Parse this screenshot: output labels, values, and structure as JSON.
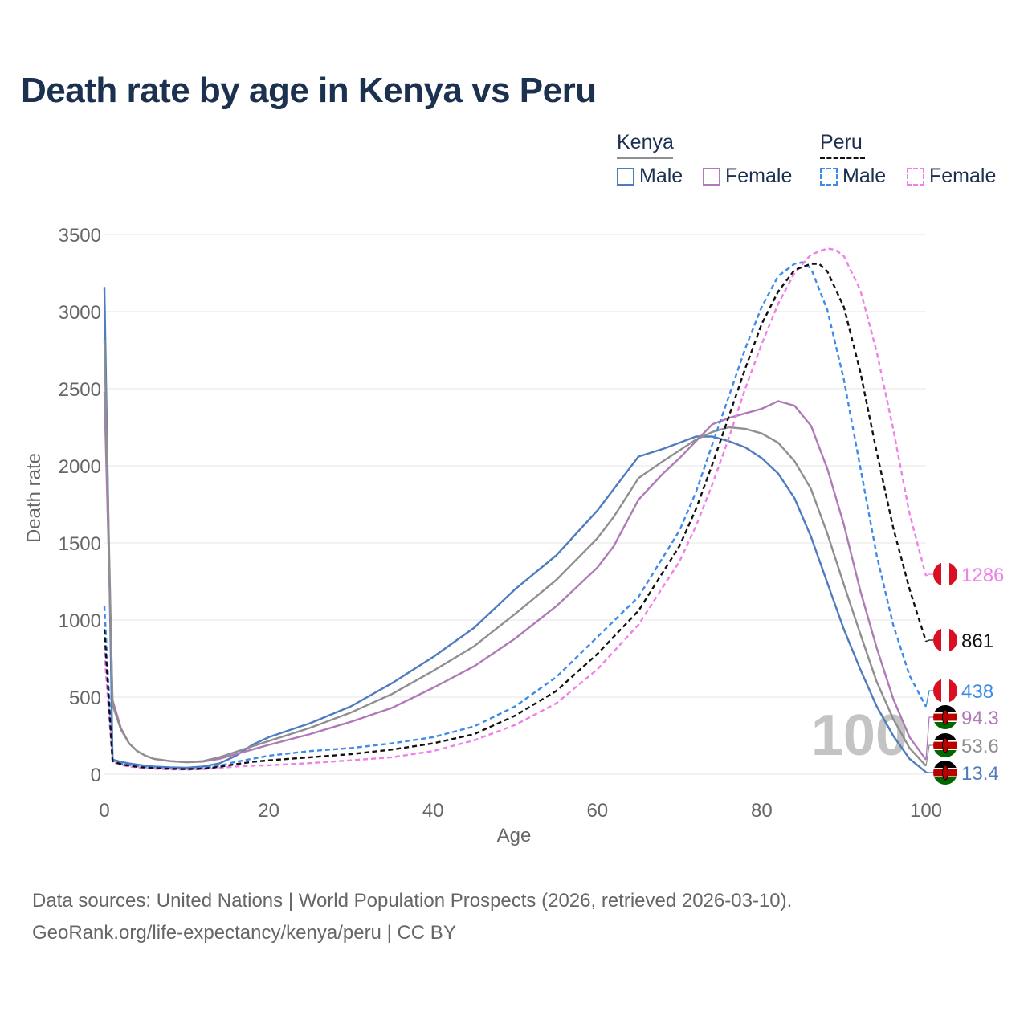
{
  "title": "Death rate by age in Kenya vs Peru",
  "legend": {
    "countries": [
      {
        "name": "Kenya",
        "line_style": "solid",
        "color": "#8f8f8f"
      },
      {
        "name": "Peru",
        "line_style": "dashed",
        "color": "#111111"
      }
    ],
    "items": [
      {
        "label": "Male",
        "country": "Kenya",
        "color": "#4f7bbf",
        "style": "solid"
      },
      {
        "label": "Female",
        "country": "Kenya",
        "color": "#b07ab8",
        "style": "solid"
      },
      {
        "label": "Male",
        "country": "Peru",
        "color": "#3d8be8",
        "style": "dashed"
      },
      {
        "label": "Female",
        "country": "Peru",
        "color": "#f07fe8",
        "style": "dashed"
      }
    ]
  },
  "chart_data": {
    "type": "line",
    "title": "Death rate by age in Kenya vs Peru",
    "xlabel": "Age",
    "ylabel": "Death rate",
    "xlim": [
      0,
      100
    ],
    "ylim": [
      0,
      3500
    ],
    "x_ticks": [
      0,
      20,
      40,
      60,
      80,
      100
    ],
    "y_ticks": [
      0,
      500,
      1000,
      1500,
      2000,
      2500,
      3000,
      3500
    ],
    "x_tick_labels": [
      "0",
      "20",
      "40",
      "60",
      "80",
      "100"
    ],
    "y_tick_labels": [
      "0",
      "500",
      "1000",
      "1500",
      "2000",
      "2500",
      "3000",
      "3500"
    ],
    "grid": true,
    "watermark": "100",
    "series": [
      {
        "name": "Kenya Male",
        "color": "#4f7bbf",
        "dash": false,
        "x": [
          0,
          1,
          2,
          3,
          4,
          5,
          6,
          8,
          10,
          12,
          14,
          16,
          18,
          20,
          25,
          30,
          35,
          40,
          45,
          50,
          55,
          60,
          62,
          65,
          68,
          70,
          72,
          74,
          76,
          78,
          80,
          82,
          84,
          86,
          88,
          90,
          92,
          94,
          96,
          98,
          100
        ],
        "y": [
          3160,
          95,
          80,
          70,
          62,
          55,
          50,
          45,
          42,
          50,
          70,
          120,
          190,
          240,
          330,
          440,
          590,
          760,
          950,
          1200,
          1420,
          1710,
          1850,
          2060,
          2110,
          2150,
          2190,
          2190,
          2160,
          2120,
          2050,
          1950,
          1790,
          1540,
          1240,
          940,
          680,
          440,
          250,
          100,
          13.4
        ],
        "end_label": "13.4"
      },
      {
        "name": "Kenya Female",
        "color": "#b07ab8",
        "dash": false,
        "x": [
          0,
          1,
          2,
          3,
          4,
          5,
          6,
          8,
          10,
          12,
          14,
          16,
          18,
          20,
          25,
          30,
          35,
          40,
          45,
          50,
          55,
          60,
          62,
          65,
          68,
          70,
          72,
          74,
          76,
          78,
          80,
          82,
          84,
          86,
          88,
          90,
          92,
          94,
          96,
          98,
          100
        ],
        "y": [
          2480,
          480,
          300,
          200,
          150,
          120,
          100,
          85,
          78,
          82,
          100,
          130,
          160,
          190,
          260,
          340,
          430,
          560,
          700,
          880,
          1090,
          1340,
          1480,
          1780,
          1950,
          2050,
          2160,
          2270,
          2310,
          2340,
          2370,
          2420,
          2390,
          2260,
          1980,
          1620,
          1190,
          820,
          490,
          240,
          94.3
        ],
        "end_label": "94.3"
      },
      {
        "name": "Kenya Total",
        "color": "#8f8f8f",
        "dash": false,
        "x": [
          0,
          1,
          2,
          3,
          4,
          5,
          6,
          8,
          10,
          12,
          14,
          16,
          18,
          20,
          25,
          30,
          35,
          40,
          45,
          50,
          55,
          60,
          62,
          65,
          68,
          70,
          72,
          74,
          76,
          78,
          80,
          82,
          84,
          86,
          88,
          90,
          92,
          94,
          96,
          98,
          100
        ],
        "y": [
          2820,
          450,
          290,
          200,
          150,
          120,
          100,
          85,
          78,
          85,
          110,
          145,
          180,
          215,
          300,
          400,
          520,
          670,
          830,
          1040,
          1260,
          1530,
          1670,
          1920,
          2030,
          2100,
          2170,
          2220,
          2250,
          2240,
          2210,
          2150,
          2030,
          1850,
          1560,
          1230,
          910,
          600,
          360,
          170,
          53.6
        ],
        "end_label": "53.6"
      },
      {
        "name": "Peru Male",
        "color": "#3d8be8",
        "dash": true,
        "x": [
          0,
          1,
          2,
          3,
          4,
          5,
          6,
          8,
          10,
          12,
          14,
          16,
          18,
          20,
          25,
          30,
          35,
          40,
          45,
          50,
          55,
          60,
          65,
          70,
          72,
          74,
          76,
          78,
          80,
          82,
          84,
          85,
          86,
          88,
          90,
          92,
          94,
          96,
          98,
          100
        ],
        "y": [
          1090,
          90,
          70,
          60,
          52,
          46,
          42,
          38,
          36,
          40,
          55,
          80,
          100,
          120,
          150,
          170,
          200,
          240,
          310,
          440,
          630,
          890,
          1150,
          1580,
          1830,
          2140,
          2450,
          2760,
          3030,
          3230,
          3310,
          3320,
          3280,
          3010,
          2560,
          1990,
          1420,
          970,
          640,
          438
        ],
        "end_label": "438"
      },
      {
        "name": "Peru Female",
        "color": "#f07fe8",
        "dash": true,
        "x": [
          0,
          1,
          2,
          3,
          4,
          5,
          6,
          8,
          10,
          12,
          14,
          16,
          18,
          20,
          25,
          30,
          35,
          40,
          45,
          50,
          55,
          60,
          65,
          70,
          72,
          74,
          76,
          78,
          80,
          82,
          84,
          86,
          88,
          89,
          90,
          92,
          94,
          96,
          98,
          100
        ],
        "y": [
          790,
          80,
          60,
          50,
          45,
          40,
          36,
          32,
          30,
          33,
          40,
          50,
          55,
          58,
          72,
          90,
          110,
          150,
          220,
          320,
          460,
          680,
          970,
          1380,
          1610,
          1880,
          2180,
          2500,
          2790,
          3050,
          3250,
          3370,
          3410,
          3400,
          3360,
          3140,
          2740,
          2240,
          1690,
          1286
        ],
        "end_label": "1286"
      },
      {
        "name": "Peru Total",
        "color": "#111111",
        "dash": true,
        "x": [
          0,
          1,
          2,
          3,
          4,
          5,
          6,
          8,
          10,
          12,
          14,
          16,
          18,
          20,
          25,
          30,
          35,
          40,
          45,
          50,
          55,
          60,
          65,
          70,
          72,
          74,
          76,
          78,
          80,
          82,
          84,
          86,
          87,
          88,
          90,
          92,
          94,
          96,
          98,
          100
        ],
        "y": [
          940,
          85,
          65,
          55,
          48,
          43,
          40,
          35,
          33,
          36,
          48,
          65,
          80,
          90,
          110,
          130,
          160,
          200,
          260,
          380,
          540,
          780,
          1060,
          1480,
          1720,
          2010,
          2320,
          2630,
          2920,
          3130,
          3270,
          3310,
          3310,
          3260,
          3030,
          2610,
          2090,
          1600,
          1200,
          861
        ],
        "end_label": "861"
      }
    ],
    "end_markers": [
      {
        "value": "1286",
        "country": "Peru",
        "color": "#f07fe8"
      },
      {
        "value": "861",
        "country": "Peru",
        "color": "#111111"
      },
      {
        "value": "438",
        "country": "Peru",
        "color": "#3d8be8"
      },
      {
        "value": "94.3",
        "country": "Kenya",
        "color": "#b07ab8"
      },
      {
        "value": "53.6",
        "country": "Kenya",
        "color": "#8f8f8f"
      },
      {
        "value": "13.4",
        "country": "Kenya",
        "color": "#4f7bbf"
      }
    ]
  },
  "source": {
    "line1": "Data sources: United Nations | World Population Prospects (2026, retrieved 2026-03-10).",
    "line2": "GeoRank.org/life-expectancy/kenya/peru | CC BY"
  }
}
